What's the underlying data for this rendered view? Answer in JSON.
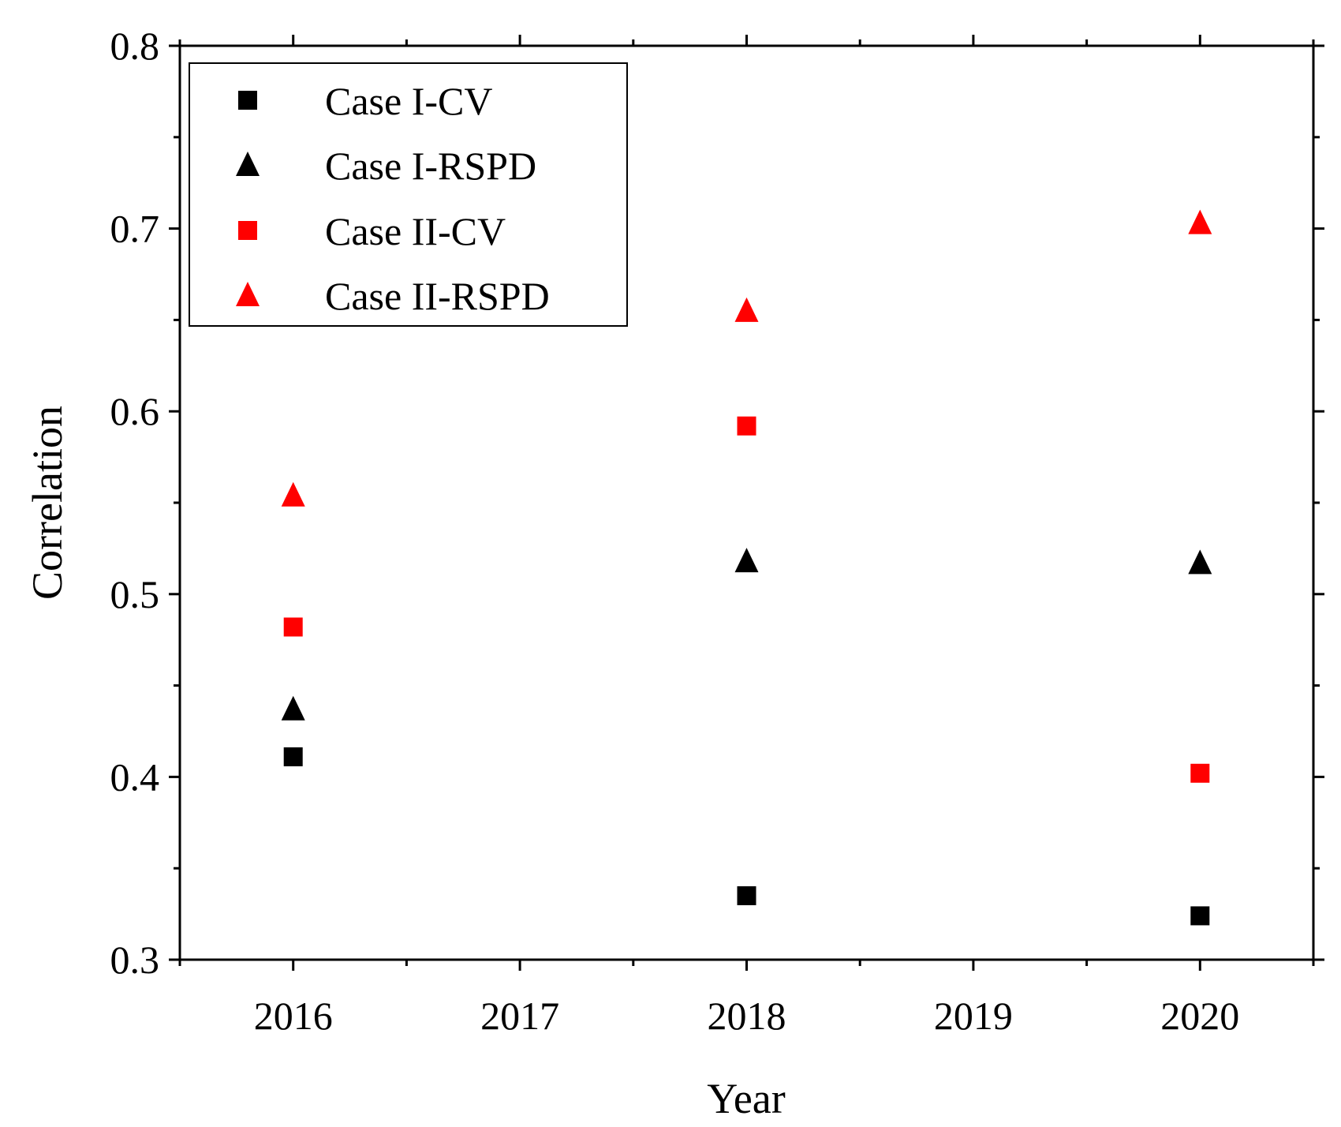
{
  "chart_data": {
    "type": "scatter",
    "title": "",
    "xlabel": "Year",
    "ylabel": "Correlation",
    "x": [
      2016,
      2018,
      2020
    ],
    "xlim": [
      2015.5,
      2020.5
    ],
    "ylim": [
      0.3,
      0.8
    ],
    "xticks": [
      "2016",
      "2017",
      "2018",
      "2019",
      "2020"
    ],
    "yticks": [
      "0.3",
      "0.4",
      "0.5",
      "0.6",
      "0.7",
      "0.8"
    ],
    "grid": false,
    "legend_position": "top-left",
    "series": [
      {
        "name": "Case I-CV",
        "marker": "square",
        "color": "#000000",
        "values": [
          0.411,
          0.335,
          0.324
        ]
      },
      {
        "name": "Case I-RSPD",
        "marker": "triangle",
        "color": "#000000",
        "values": [
          0.437,
          0.518,
          0.517
        ]
      },
      {
        "name": "Case II-CV",
        "marker": "square",
        "color": "#ff0000",
        "values": [
          0.482,
          0.592,
          0.402
        ]
      },
      {
        "name": "Case II-RSPD",
        "marker": "triangle",
        "color": "#ff0000",
        "values": [
          0.554,
          0.655,
          0.703
        ]
      }
    ]
  }
}
